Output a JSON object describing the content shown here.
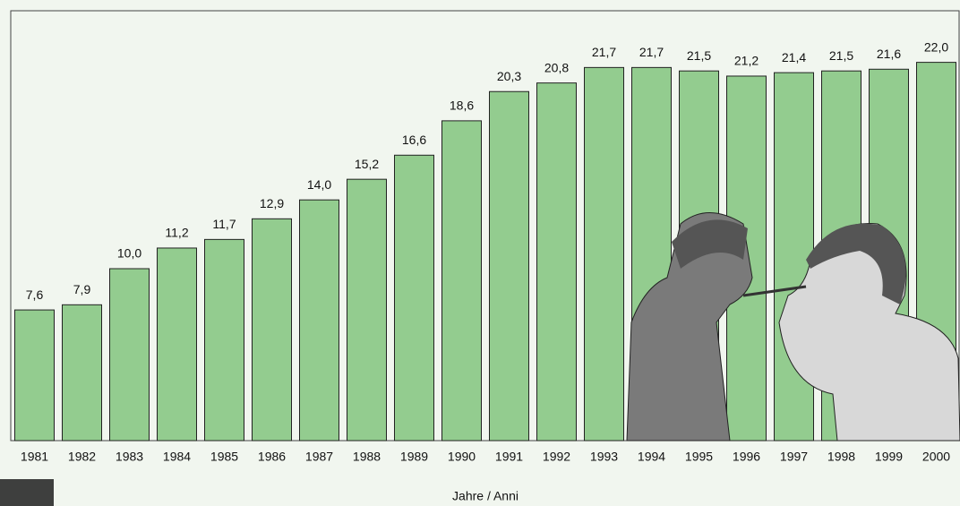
{
  "chart_data": {
    "type": "bar",
    "categories": [
      "1981",
      "1982",
      "1983",
      "1984",
      "1985",
      "1986",
      "1987",
      "1988",
      "1989",
      "1990",
      "1991",
      "1992",
      "1993",
      "1994",
      "1995",
      "1996",
      "1997",
      "1998",
      "1999",
      "2000"
    ],
    "values": [
      7.6,
      7.9,
      10.0,
      11.2,
      11.7,
      12.9,
      14.0,
      15.2,
      16.6,
      18.6,
      20.3,
      20.8,
      21.7,
      21.7,
      21.5,
      21.2,
      21.4,
      21.5,
      21.6,
      22.0
    ],
    "value_labels": [
      "7,6",
      "7,9",
      "10,0",
      "11,2",
      "11,7",
      "12,9",
      "14,0",
      "15,2",
      "16,6",
      "18,6",
      "20,3",
      "20,8",
      "21,7",
      "21,7",
      "21,5",
      "21,2",
      "21,4",
      "21,5",
      "21,6",
      "22,0"
    ],
    "color": "#93cc8f",
    "x_label": "Jahre / Anni",
    "ylim": [
      0,
      25
    ]
  }
}
